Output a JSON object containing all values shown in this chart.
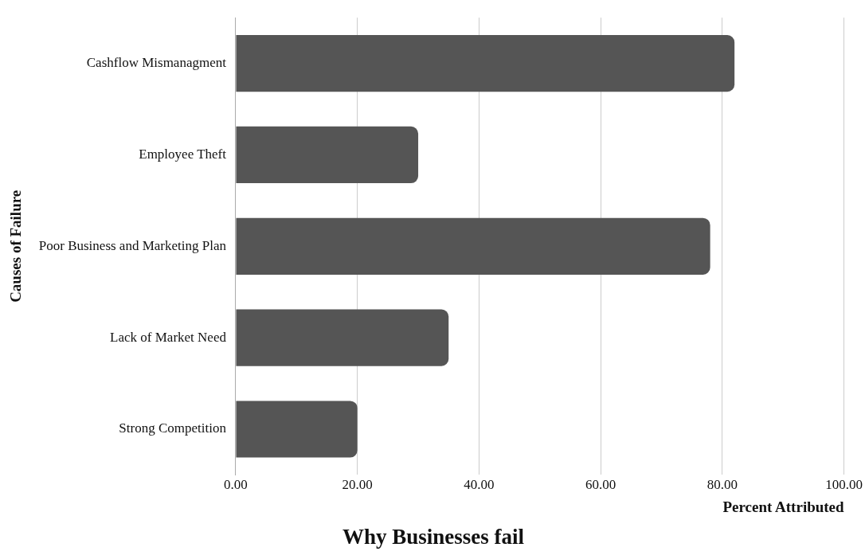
{
  "chart_data": {
    "type": "bar",
    "orientation": "horizontal",
    "title": "Why Businesses fail",
    "xlabel": "Percent Attributed",
    "ylabel": "Causes of Failure",
    "categories": [
      "Cashflow Mismanagment",
      "Employee Theft",
      "Poor Business and Marketing Plan",
      "Lack of Market Need",
      "Strong Competition"
    ],
    "values": [
      82,
      30,
      78,
      35,
      20
    ],
    "color": "#555555",
    "xlim": [
      0,
      100
    ],
    "xticks": [
      {
        "value": 0,
        "label": "0.00"
      },
      {
        "value": 20,
        "label": "20.00"
      },
      {
        "value": 40,
        "label": "40.00"
      },
      {
        "value": 60,
        "label": "60.00"
      },
      {
        "value": 80,
        "label": "80.00"
      },
      {
        "value": 100,
        "label": "100.00"
      }
    ],
    "grid": "x",
    "legend": false
  }
}
